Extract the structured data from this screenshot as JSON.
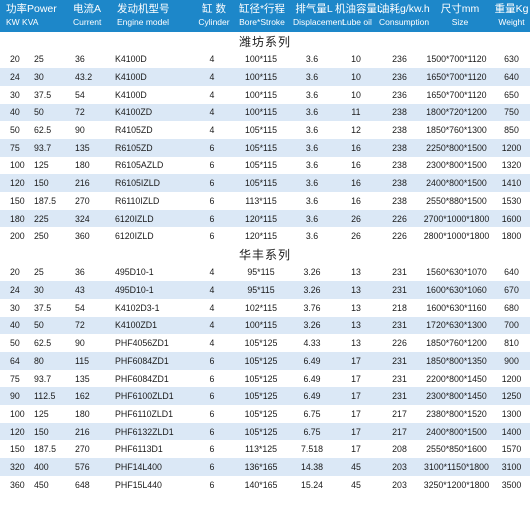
{
  "header": [
    {
      "top": "功率Power",
      "bot": "KW   KVA"
    },
    {
      "top": "",
      "bot": ""
    },
    {
      "top": "电流A",
      "bot": "Current"
    },
    {
      "top": "发动机型号",
      "bot": "Engine model"
    },
    {
      "top": "缸 数",
      "bot": "Cylinder"
    },
    {
      "top": "缸径*行程",
      "bot": "Bore*Stroke"
    },
    {
      "top": "排气量L",
      "bot": "Displacement"
    },
    {
      "top": "机油容量L",
      "bot": "Lube oil"
    },
    {
      "top": "油耗g/kw.h",
      "bot": "Consumption"
    },
    {
      "top": "尺寸mm",
      "bot": "Size"
    },
    {
      "top": "重量Kg",
      "bot": "Weight"
    }
  ],
  "sections": [
    {
      "title": "潍坊系列",
      "rows": [
        [
          "20",
          "25",
          "36",
          "K4100D",
          "4",
          "100*115",
          "3.6",
          "10",
          "236",
          "1500*700*1120",
          "630"
        ],
        [
          "24",
          "30",
          "43.2",
          "K4100D",
          "4",
          "100*115",
          "3.6",
          "10",
          "236",
          "1650*700*1120",
          "640"
        ],
        [
          "30",
          "37.5",
          "54",
          "K4100D",
          "4",
          "100*115",
          "3.6",
          "10",
          "236",
          "1650*700*1120",
          "650"
        ],
        [
          "40",
          "50",
          "72",
          "K4100ZD",
          "4",
          "100*115",
          "3.6",
          "11",
          "238",
          "1800*720*1200",
          "750"
        ],
        [
          "50",
          "62.5",
          "90",
          "R4105ZD",
          "4",
          "105*115",
          "3.6",
          "12",
          "238",
          "1850*760*1300",
          "850"
        ],
        [
          "75",
          "93.7",
          "135",
          "R6105ZD",
          "6",
          "105*115",
          "3.6",
          "16",
          "238",
          "2250*800*1500",
          "1200"
        ],
        [
          "100",
          "125",
          "180",
          "R6105AZLD",
          "6",
          "105*115",
          "3.6",
          "16",
          "238",
          "2300*800*1500",
          "1320"
        ],
        [
          "120",
          "150",
          "216",
          "R6105IZLD",
          "6",
          "105*115",
          "3.6",
          "16",
          "238",
          "2400*800*1500",
          "1410"
        ],
        [
          "150",
          "187.5",
          "270",
          "R6110IZLD",
          "6",
          "113*115",
          "3.6",
          "16",
          "238",
          "2550*880*1500",
          "1530"
        ],
        [
          "180",
          "225",
          "324",
          "6120IZLD",
          "6",
          "120*115",
          "3.6",
          "26",
          "226",
          "2700*1000*1800",
          "1600"
        ],
        [
          "200",
          "250",
          "360",
          "6120IZLD",
          "6",
          "120*115",
          "3.6",
          "26",
          "226",
          "2800*1000*1800",
          "1800"
        ]
      ]
    },
    {
      "title": "华丰系列",
      "rows": [
        [
          "20",
          "25",
          "36",
          "495D10-1",
          "4",
          "95*115",
          "3.26",
          "13",
          "231",
          "1560*630*1070",
          "640"
        ],
        [
          "24",
          "30",
          "43",
          "495D10-1",
          "4",
          "95*115",
          "3.26",
          "13",
          "231",
          "1600*630*1060",
          "670"
        ],
        [
          "30",
          "37.5",
          "54",
          "K4102D3-1",
          "4",
          "102*115",
          "3.76",
          "13",
          "218",
          "1600*630*1160",
          "680"
        ],
        [
          "40",
          "50",
          "72",
          "K4100ZD1",
          "4",
          "100*115",
          "3.26",
          "13",
          "231",
          "1720*630*1300",
          "700"
        ],
        [
          "50",
          "62.5",
          "90",
          "PHF4056ZD1",
          "4",
          "105*125",
          "4.33",
          "13",
          "226",
          "1850*760*1200",
          "810"
        ],
        [
          "64",
          "80",
          "115",
          "PHF6084ZD1",
          "6",
          "105*125",
          "6.49",
          "17",
          "231",
          "1850*800*1350",
          "900"
        ],
        [
          "75",
          "93.7",
          "135",
          "PHF6084ZD1",
          "6",
          "105*125",
          "6.49",
          "17",
          "231",
          "2200*800*1450",
          "1200"
        ],
        [
          "90",
          "112.5",
          "162",
          "PHF6100ZLD1",
          "6",
          "105*125",
          "6.49",
          "17",
          "231",
          "2300*800*1450",
          "1250"
        ],
        [
          "100",
          "125",
          "180",
          "PHF6110ZLD1",
          "6",
          "105*125",
          "6.75",
          "17",
          "217",
          "2380*800*1520",
          "1300"
        ],
        [
          "120",
          "150",
          "216",
          "PHF6132ZLD1",
          "6",
          "105*125",
          "6.75",
          "17",
          "217",
          "2400*800*1500",
          "1400"
        ],
        [
          "150",
          "187.5",
          "270",
          "PHF6113D1",
          "6",
          "113*125",
          "7.518",
          "17",
          "208",
          "2550*850*1600",
          "1570"
        ],
        [
          "320",
          "400",
          "576",
          "PHF14L400",
          "6",
          "136*165",
          "14.38",
          "45",
          "203",
          "3100*1150*1800",
          "3100"
        ],
        [
          "360",
          "450",
          "648",
          "PHF15L440",
          "6",
          "140*165",
          "15.24",
          "45",
          "203",
          "3250*1200*1800",
          "3500"
        ]
      ]
    }
  ]
}
